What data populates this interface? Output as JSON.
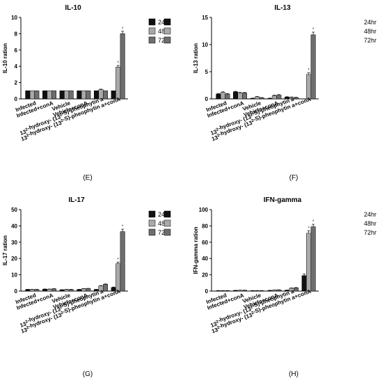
{
  "legend": [
    "24hr",
    "48hr",
    "72hr"
  ],
  "colors": {
    "24hr": "#111111",
    "48hr": "#a9a9a9",
    "72hr": "#6e6e6e"
  },
  "categories": [
    "Infected",
    "Infected+conA",
    "Vehicle",
    "Vehicle+conA",
    "13²-hydroxy- (13²-S)-pheophytin a",
    "13²-hydroxy- (13²-S)-pheophytin a+conA"
  ],
  "chart_data": [
    {
      "type": "bar",
      "panel": "(E)",
      "title": "IL-10",
      "ylabel": "IL-10 ration",
      "ylim": [
        0,
        10
      ],
      "yticks": [
        0,
        2,
        4,
        6,
        8,
        10
      ],
      "categories": [
        "Infected",
        "Infected+conA",
        "Vehicle",
        "Vehicle+conA",
        "13²-hydroxy- (13²-S)-pheophytin a",
        "13²-hydroxy- (13²-S)-pheophytin a+conA"
      ],
      "series": [
        {
          "name": "24hr",
          "values": [
            1,
            1,
            1,
            1,
            1,
            1
          ]
        },
        {
          "name": "48hr",
          "values": [
            1,
            1,
            1,
            1,
            1.15,
            3.9
          ]
        },
        {
          "name": "72hr",
          "values": [
            1,
            1,
            1,
            1,
            1,
            8.0
          ]
        }
      ],
      "errors": [
        [
          0,
          0,
          0,
          0,
          0,
          0
        ],
        [
          0,
          0,
          0,
          0,
          0.05,
          0.2
        ],
        [
          0,
          0,
          0,
          0,
          0,
          0.3
        ]
      ],
      "marks": [
        "",
        "",
        "",
        "",
        "",
        "*"
      ]
    },
    {
      "type": "bar",
      "panel": "(F)",
      "title": "IL-13",
      "ylabel": "IL-13 ration",
      "ylim": [
        0,
        15
      ],
      "yticks": [
        0,
        5,
        10,
        15
      ],
      "categories": [
        "Infected",
        "Infected+conA",
        "Vehicle",
        "Vehicle+conA",
        "13²-hydroxy- (13²-S)-pheophytin a",
        "13²-hydroxy- (13²-S)-pheophytin a+conA"
      ],
      "series": [
        {
          "name": "24hr",
          "values": [
            0.9,
            1.3,
            0.1,
            0.1,
            0.35,
            0
          ]
        },
        {
          "name": "48hr",
          "values": [
            1.2,
            1.1,
            0.4,
            0.6,
            0.3,
            4.5
          ]
        },
        {
          "name": "72hr",
          "values": [
            0.9,
            1.1,
            0.2,
            0.7,
            0.25,
            11.8
          ]
        }
      ],
      "errors": [
        [
          0.1,
          0.1,
          0.05,
          0.05,
          0.05,
          0
        ],
        [
          0.1,
          0.1,
          0.05,
          0.1,
          0.05,
          0.3
        ],
        [
          0.1,
          0.1,
          0.05,
          0.1,
          0.05,
          0.5
        ]
      ],
      "marks": [
        "",
        "",
        "",
        "",
        "",
        "*"
      ]
    },
    {
      "type": "bar",
      "panel": "(G)",
      "title": "IL-17",
      "ylabel": "IL-17 ration",
      "ylim": [
        0,
        50
      ],
      "yticks": [
        0,
        10,
        20,
        30,
        40,
        50
      ],
      "categories": [
        "Infected",
        "Infected+conA",
        "Vehicle",
        "Vehicle+conA",
        "13²-hydroxy- (13²-S)-pheophytin a",
        "13²-hydroxy- (13²-S)-pheophytin a+conA"
      ],
      "series": [
        {
          "name": "24hr",
          "values": [
            1,
            1.2,
            0.8,
            1,
            1,
            2.2
          ]
        },
        {
          "name": "48hr",
          "values": [
            1,
            1.2,
            1,
            1.5,
            3.2,
            16.8
          ]
        },
        {
          "name": "72hr",
          "values": [
            1,
            1.4,
            1,
            1.6,
            4.2,
            36.5
          ]
        }
      ],
      "errors": [
        [
          0.1,
          0.1,
          0.1,
          0.1,
          0.1,
          0.3
        ],
        [
          0.1,
          0.1,
          0.1,
          0.1,
          0.2,
          1.0
        ],
        [
          0.1,
          0.1,
          0.1,
          0.1,
          0.2,
          1.5
        ]
      ],
      "marks": [
        "",
        "",
        "",
        "",
        "",
        "*"
      ]
    },
    {
      "type": "bar",
      "panel": "(H)",
      "title": "IFN-gamma",
      "ylabel": "IFN-gamma ration",
      "ylim": [
        0,
        100
      ],
      "yticks": [
        0,
        20,
        40,
        60,
        80,
        100
      ],
      "categories": [
        "Infected",
        "Infected+conA",
        "Vehicle",
        "Vehicle+conA",
        "13²-hydroxy- (13²-S)-pheophytin a",
        "13²-hydroxy- (13²-S)-pheophytin a+conA"
      ],
      "series": [
        {
          "name": "24hr",
          "values": [
            0.5,
            0.8,
            0.5,
            0.8,
            1,
            19
          ]
        },
        {
          "name": "48hr",
          "values": [
            0.5,
            1,
            0.5,
            1.2,
            3.5,
            71
          ]
        },
        {
          "name": "72hr",
          "values": [
            0.5,
            1,
            0.5,
            1.5,
            4,
            79
          ]
        }
      ],
      "errors": [
        [
          0.2,
          0.2,
          0.2,
          0.2,
          0.3,
          2
        ],
        [
          0.2,
          0.2,
          0.2,
          0.2,
          0.4,
          3
        ],
        [
          0.2,
          0.2,
          0.2,
          0.2,
          0.4,
          3
        ]
      ],
      "marks": [
        "",
        "",
        "",
        "",
        "",
        "*"
      ]
    }
  ]
}
